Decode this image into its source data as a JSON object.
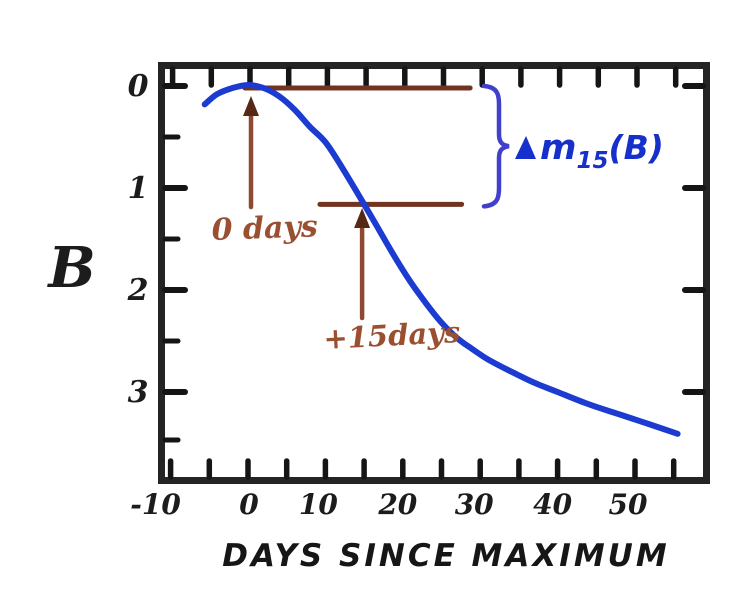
{
  "figure": {
    "kind": "hand-drawn supernova light-curve sketch",
    "background_color": "#ffffff"
  },
  "colors": {
    "frame": "#242424",
    "tick": "#151515",
    "curve_blue": "#1c3bd0",
    "brace_blue": "#4040cd",
    "label_blue": "#1630cc",
    "ref_line_brown": "#703420",
    "arrow_shaft_brown": "#8d4a30",
    "arrow_head_dark": "#57281600",
    "arrow_head": "#572816",
    "text_brown": "#9a4f31"
  },
  "axes": {
    "y_label": "B",
    "x_label": "DAYS SINCE MAXIMUM",
    "x_tick_days": [
      -10,
      -5,
      0,
      5,
      10,
      15,
      20,
      25,
      30,
      35,
      40,
      45,
      50,
      55
    ],
    "x_labeled_days": [
      -10,
      0,
      10,
      20,
      30,
      40,
      50
    ],
    "x_tick_labels": [
      "-10",
      "0",
      "10",
      "20",
      "30",
      "40",
      "50"
    ],
    "y_major_ticks": [
      0,
      1,
      2,
      3
    ],
    "y_tick_labels": [
      "0",
      "1",
      "2",
      "3"
    ],
    "y_minor_ticks": [
      0.5,
      1.5,
      2.5,
      3.47
    ],
    "x_range_days": [
      -11.6,
      59.5
    ],
    "y_range_mag_top_to_bottom": [
      -0.24,
      3.9
    ],
    "grid": "off"
  },
  "chart_data": {
    "type": "line",
    "title": "",
    "xlabel": "DAYS SINCE MAXIMUM",
    "ylabel": "B",
    "xlim": [
      -11.6,
      59.5
    ],
    "ylim": [
      3.9,
      -0.24
    ],
    "y_axis_inverted": true,
    "legend": "none",
    "series": [
      {
        "name": "B-band light curve",
        "color": "#1c3bd0",
        "x": [
          -5.6,
          -4,
          -2,
          0,
          2,
          4,
          6,
          8,
          10,
          12,
          15,
          17,
          19,
          21,
          23,
          25,
          27,
          29,
          31,
          34,
          37,
          40,
          44,
          48,
          52,
          55.5
        ],
        "y": [
          0.18,
          0.08,
          0.02,
          -0.01,
          0.02,
          0.1,
          0.23,
          0.4,
          0.55,
          0.78,
          1.16,
          1.42,
          1.68,
          1.92,
          2.13,
          2.32,
          2.47,
          2.58,
          2.68,
          2.8,
          2.91,
          3.0,
          3.12,
          3.22,
          3.32,
          3.41
        ]
      }
    ],
    "reference_lines": [
      {
        "label": "magnitude at maximum",
        "y": 0.02,
        "x_start": -0.4,
        "x_end": 28.7,
        "color": "#703420"
      },
      {
        "label": "magnitude 15 days after maximum",
        "y": 1.16,
        "x_start": 9.3,
        "x_end": 27.6,
        "color": "#703420"
      }
    ],
    "annotations": [
      {
        "text": "0 days",
        "points_to_day": 0
      },
      {
        "text": "+15days",
        "points_to_day": 15
      },
      {
        "text": "Δm15(B)",
        "meaning": "decline in B magnitude during first 15 days after maximum, spanned by brace"
      }
    ]
  },
  "annotations": {
    "zero_days": {
      "label": "0 days"
    },
    "plus15": {
      "label": "+15days"
    },
    "dm15": {
      "prefix": "m",
      "sub": "15",
      "suffix": "(B)",
      "full": "Δm15(B)"
    }
  }
}
